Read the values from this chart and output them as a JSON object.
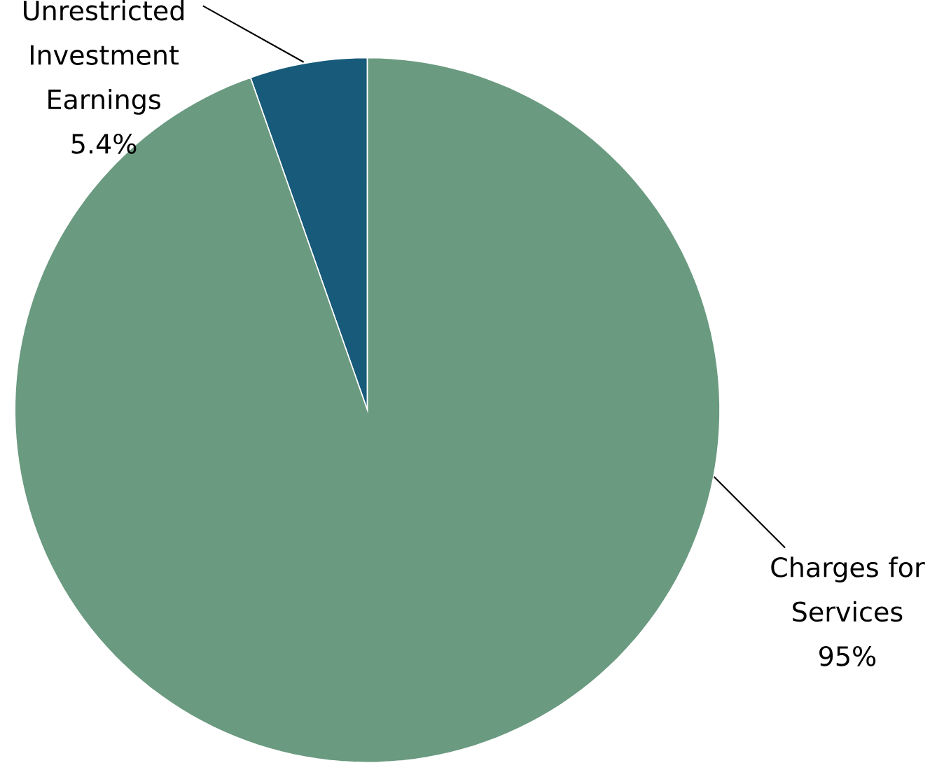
{
  "chart_data": {
    "type": "pie",
    "categories": [
      "Unrestricted Investment Earnings",
      "Charges for Services"
    ],
    "values": [
      5.4,
      95
    ],
    "colors": [
      "#175a7a",
      "#6a9a80"
    ],
    "value_labels": [
      "5.4%",
      "95%"
    ]
  }
}
